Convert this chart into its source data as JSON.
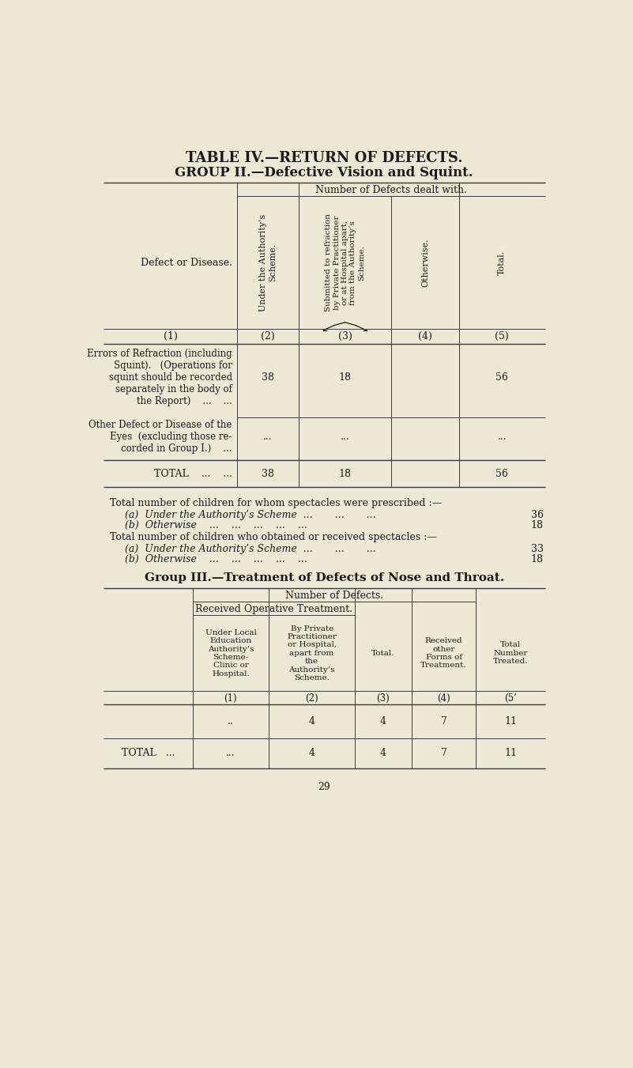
{
  "bg_color": "#ede8d5",
  "text_color": "#1a1a1a",
  "title1": "TABLE IV.—RETURN OF DEFECTS.",
  "title2": "GROUP II.—Defective Vision and Squint.",
  "group2_header": "Number of Defects dealt with.",
  "group3_title": "Group III.—Treatment of Defects of Nose and Throat.",
  "g3_header_main": "Number of Defects.",
  "g3_sub_header1": "Received Operative Treatment.",
  "g3_col1": "Under Local\nEducation\nAuthority’s\nScheme-\nClinic or\nHospital.",
  "g3_col2": "By Private\nPractitioner\nor Hospital,\napart from\nthe\nAuthority’s\nScheme.",
  "g3_col3": "Total.",
  "g3_col4": "Received\nother\nForms of\nTreatment.",
  "g3_col5": "Total\nNumber\nTreated.",
  "page_num": "29"
}
